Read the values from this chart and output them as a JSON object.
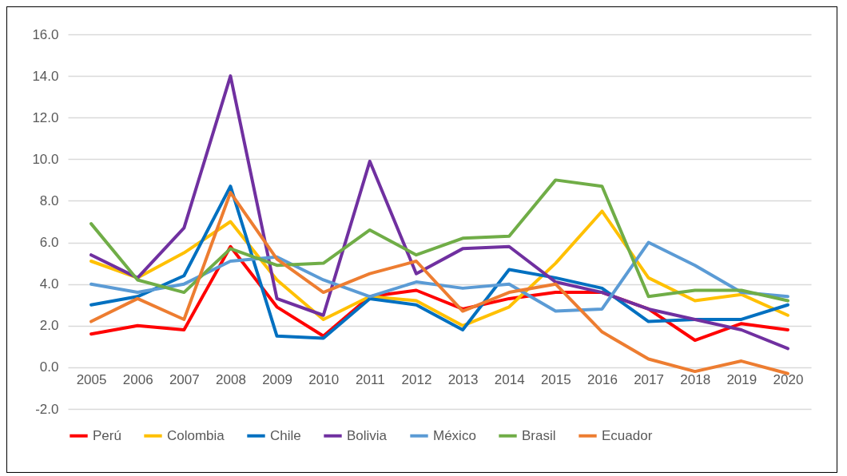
{
  "chart_data": {
    "type": "line",
    "categories": [
      "2005",
      "2006",
      "2007",
      "2008",
      "2009",
      "2010",
      "2011",
      "2012",
      "2013",
      "2014",
      "2015",
      "2016",
      "2017",
      "2018",
      "2019",
      "2020"
    ],
    "ylim": [
      -2,
      16
    ],
    "yticks": [
      {
        "value": -2,
        "label": "-2.0"
      },
      {
        "value": 0,
        "label": "0.0"
      },
      {
        "value": 2,
        "label": "2.0"
      },
      {
        "value": 4,
        "label": "4.0"
      },
      {
        "value": 6,
        "label": "6.0"
      },
      {
        "value": 8,
        "label": "8.0"
      },
      {
        "value": 10,
        "label": "10.0"
      },
      {
        "value": 12,
        "label": "12.0"
      },
      {
        "value": 14,
        "label": "14.0"
      },
      {
        "value": 16,
        "label": "16.0"
      }
    ],
    "grid": "y",
    "legend": "bottom",
    "marker": "none",
    "line_style": "solid",
    "series": [
      {
        "name": "Perú",
        "color": "#ff0000",
        "values": [
          1.6,
          2.0,
          1.8,
          5.8,
          2.9,
          1.5,
          3.4,
          3.7,
          2.8,
          3.3,
          3.6,
          3.6,
          2.8,
          1.3,
          2.1,
          1.8
        ]
      },
      {
        "name": "Colombia",
        "color": "#ffc000",
        "values": [
          5.1,
          4.3,
          5.5,
          7.0,
          4.2,
          2.3,
          3.4,
          3.2,
          2.0,
          2.9,
          5.0,
          7.5,
          4.3,
          3.2,
          3.5,
          2.5
        ]
      },
      {
        "name": "Chile",
        "color": "#0070c0",
        "values": [
          3.0,
          3.4,
          4.4,
          8.7,
          1.5,
          1.4,
          3.3,
          3.0,
          1.8,
          4.7,
          4.3,
          3.8,
          2.2,
          2.3,
          2.3,
          3.0
        ]
      },
      {
        "name": "Bolivia",
        "color": "#7030a0",
        "values": [
          5.4,
          4.3,
          6.7,
          14.0,
          3.3,
          2.5,
          9.9,
          4.5,
          5.7,
          5.8,
          4.1,
          3.6,
          2.8,
          2.3,
          1.8,
          0.9
        ]
      },
      {
        "name": "México",
        "color": "#5b9bd5",
        "values": [
          4.0,
          3.6,
          4.0,
          5.1,
          5.3,
          4.2,
          3.4,
          4.1,
          3.8,
          4.0,
          2.7,
          2.8,
          6.0,
          4.9,
          3.6,
          3.4
        ]
      },
      {
        "name": "Brasil",
        "color": "#70ad47",
        "values": [
          6.9,
          4.2,
          3.6,
          5.7,
          4.9,
          5.0,
          6.6,
          5.4,
          6.2,
          6.3,
          9.0,
          8.7,
          3.4,
          3.7,
          3.7,
          3.2
        ]
      },
      {
        "name": "Ecuador",
        "color": "#ed7d31",
        "values": [
          2.2,
          3.3,
          2.3,
          8.4,
          5.2,
          3.6,
          4.5,
          5.1,
          2.7,
          3.6,
          4.0,
          1.7,
          0.4,
          -0.2,
          0.3,
          -0.3
        ]
      }
    ]
  }
}
